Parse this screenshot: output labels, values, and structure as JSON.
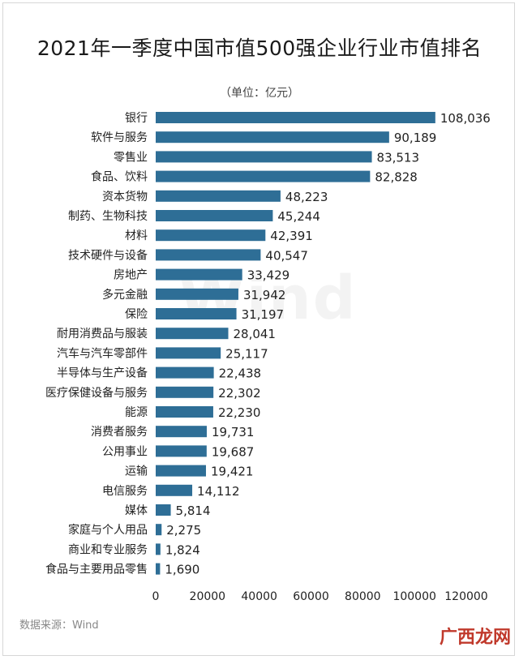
{
  "title": "2021年一季度中国市值500强企业行业市值排名",
  "unit_text": "（单位：亿元）",
  "source_text": "数据来源：Wind",
  "watermark_text": "广西龙网",
  "background_mark": "Wind",
  "bar_color": "#2e6e96",
  "chart_data": {
    "type": "bar",
    "orientation": "horizontal",
    "categories": [
      "银行",
      "软件与服务",
      "零售业",
      "食品、饮料",
      "资本货物",
      "制药、生物科技",
      "材料",
      "技术硬件与设备",
      "房地产",
      "多元金融",
      "保险",
      "耐用消费品与服装",
      "汽车与汽车零部件",
      "半导体与生产设备",
      "医疗保健设备与服务",
      "能源",
      "消费者服务",
      "公用事业",
      "运输",
      "电信服务",
      "媒体",
      "家庭与个人用品",
      "商业和专业服务",
      "食品与主要用品零售"
    ],
    "values": [
      108036,
      90189,
      83513,
      82828,
      48223,
      45244,
      42391,
      40547,
      33429,
      31942,
      31197,
      28041,
      25117,
      22438,
      22302,
      22230,
      19731,
      19687,
      19421,
      14112,
      5814,
      2275,
      1824,
      1690
    ],
    "value_labels": [
      "108,036",
      "90,189",
      "83,513",
      "82,828",
      "48,223",
      "45,244",
      "42,391",
      "40,547",
      "33,429",
      "31,942",
      "31,197",
      "28,041",
      "25,117",
      "22,438",
      "22,302",
      "22,230",
      "19,731",
      "19,687",
      "19,421",
      "14,112",
      "5,814",
      "2,275",
      "1,824",
      "1,690"
    ],
    "xlim": [
      0,
      120000
    ],
    "xticks": [
      0,
      20000,
      40000,
      60000,
      80000,
      100000,
      120000
    ],
    "xtick_labels": [
      "0",
      "20000",
      "40000",
      "60000",
      "80000",
      "100000",
      "120000"
    ],
    "grid": false,
    "legend": "none"
  }
}
